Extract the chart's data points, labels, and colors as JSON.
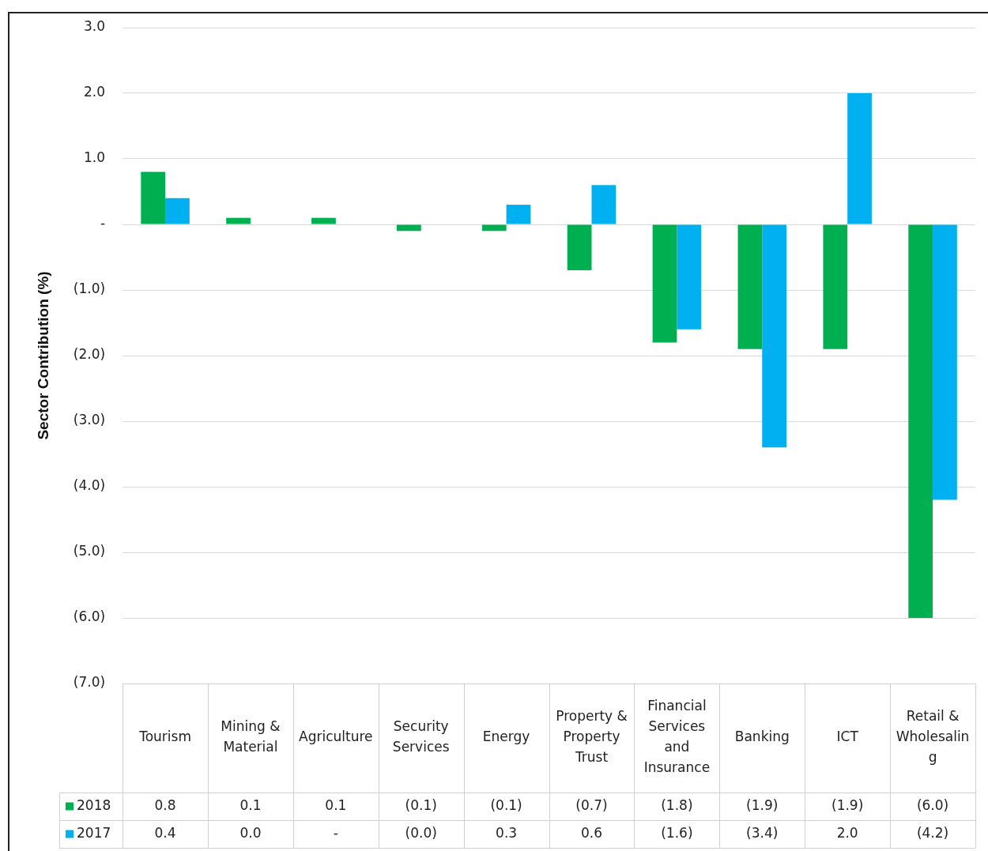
{
  "chart_data": {
    "type": "bar",
    "ylabel": "Sector Contribution (%)",
    "categories": [
      "Tourism",
      "Mining & Material",
      "Agriculture",
      "Security Services",
      "Energy",
      "Property & Property Trust",
      "Financial Services and Insurance",
      "Banking",
      "ICT",
      "Retail & Wholesaling"
    ],
    "series": [
      {
        "name": "2018",
        "color": "#00b050",
        "values": [
          0.8,
          0.1,
          0.1,
          -0.1,
          -0.1,
          -0.7,
          -1.8,
          -1.9,
          -1.9,
          -6.0
        ],
        "value_labels": [
          "0.8",
          "0.1",
          "0.1",
          "(0.1)",
          "(0.1)",
          "(0.7)",
          "(1.8)",
          "(1.9)",
          "(1.9)",
          "(6.0)"
        ]
      },
      {
        "name": "2017",
        "color": "#00b0f0",
        "values": [
          0.4,
          0.0,
          0,
          -0.0,
          0.3,
          0.6,
          -1.6,
          -3.4,
          2.0,
          -4.2
        ],
        "value_labels": [
          "0.4",
          "0.0",
          "-",
          "(0.0)",
          "0.3",
          "0.6",
          "(1.6)",
          "(3.4)",
          "2.0",
          "(4.2)"
        ]
      }
    ],
    "ylim": [
      -7,
      3
    ],
    "yticks": [
      {
        "value": 3,
        "label": "3.0"
      },
      {
        "value": 2,
        "label": "2.0"
      },
      {
        "value": 1,
        "label": "1.0"
      },
      {
        "value": 0,
        "label": "-"
      },
      {
        "value": -1,
        "label": "(1.0)"
      },
      {
        "value": -2,
        "label": "(2.0)"
      },
      {
        "value": -3,
        "label": "(3.0)"
      },
      {
        "value": -4,
        "label": "(4.0)"
      },
      {
        "value": -5,
        "label": "(5.0)"
      },
      {
        "value": -6,
        "label": "(6.0)"
      },
      {
        "value": -7,
        "label": "(7.0)"
      }
    ],
    "grid": "y",
    "legend": "bottom left"
  }
}
